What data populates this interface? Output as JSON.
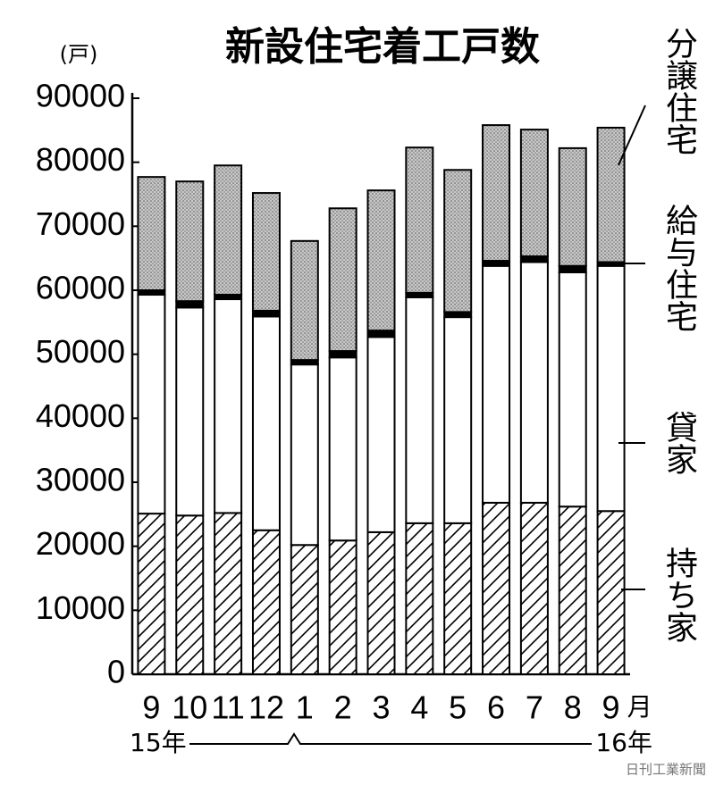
{
  "chart_data": {
    "type": "stacked_bar",
    "title": "新設住宅着工戸数",
    "y_unit": "(戸)",
    "categories": [
      "9",
      "10",
      "11",
      "12",
      "1",
      "2",
      "3",
      "4",
      "5",
      "6",
      "7",
      "8",
      "9"
    ],
    "x_unit": "月",
    "year_start": "15年",
    "year_end": "16年",
    "series": [
      {
        "name": "持ち家",
        "color": "#000000",
        "pattern": "hatch",
        "values": [
          25100,
          24800,
          25200,
          22500,
          20200,
          20900,
          22200,
          23600,
          23600,
          26800,
          26800,
          26200,
          25500
        ]
      },
      {
        "name": "貸家",
        "color": "#ffffff",
        "pattern": null,
        "values": [
          34200,
          32500,
          33400,
          33400,
          28200,
          28600,
          30500,
          35300,
          32200,
          37000,
          37600,
          36600,
          38300
        ]
      },
      {
        "name": "給与住宅",
        "color": "#000000",
        "pattern": null,
        "values": [
          700,
          1000,
          700,
          900,
          700,
          1000,
          1000,
          700,
          800,
          800,
          900,
          1000,
          600
        ]
      },
      {
        "name": "分譲住宅",
        "color": "#c8c8c8",
        "pattern": "dots",
        "values": [
          17700,
          18700,
          20200,
          18400,
          18600,
          22300,
          21900,
          22700,
          22200,
          21200,
          19800,
          18400,
          21000
        ]
      }
    ],
    "ylim": [
      0,
      90000
    ],
    "yticks": [
      0,
      10000,
      20000,
      30000,
      40000,
      50000,
      60000,
      70000,
      80000,
      90000
    ],
    "source": "日刊工業新聞"
  }
}
